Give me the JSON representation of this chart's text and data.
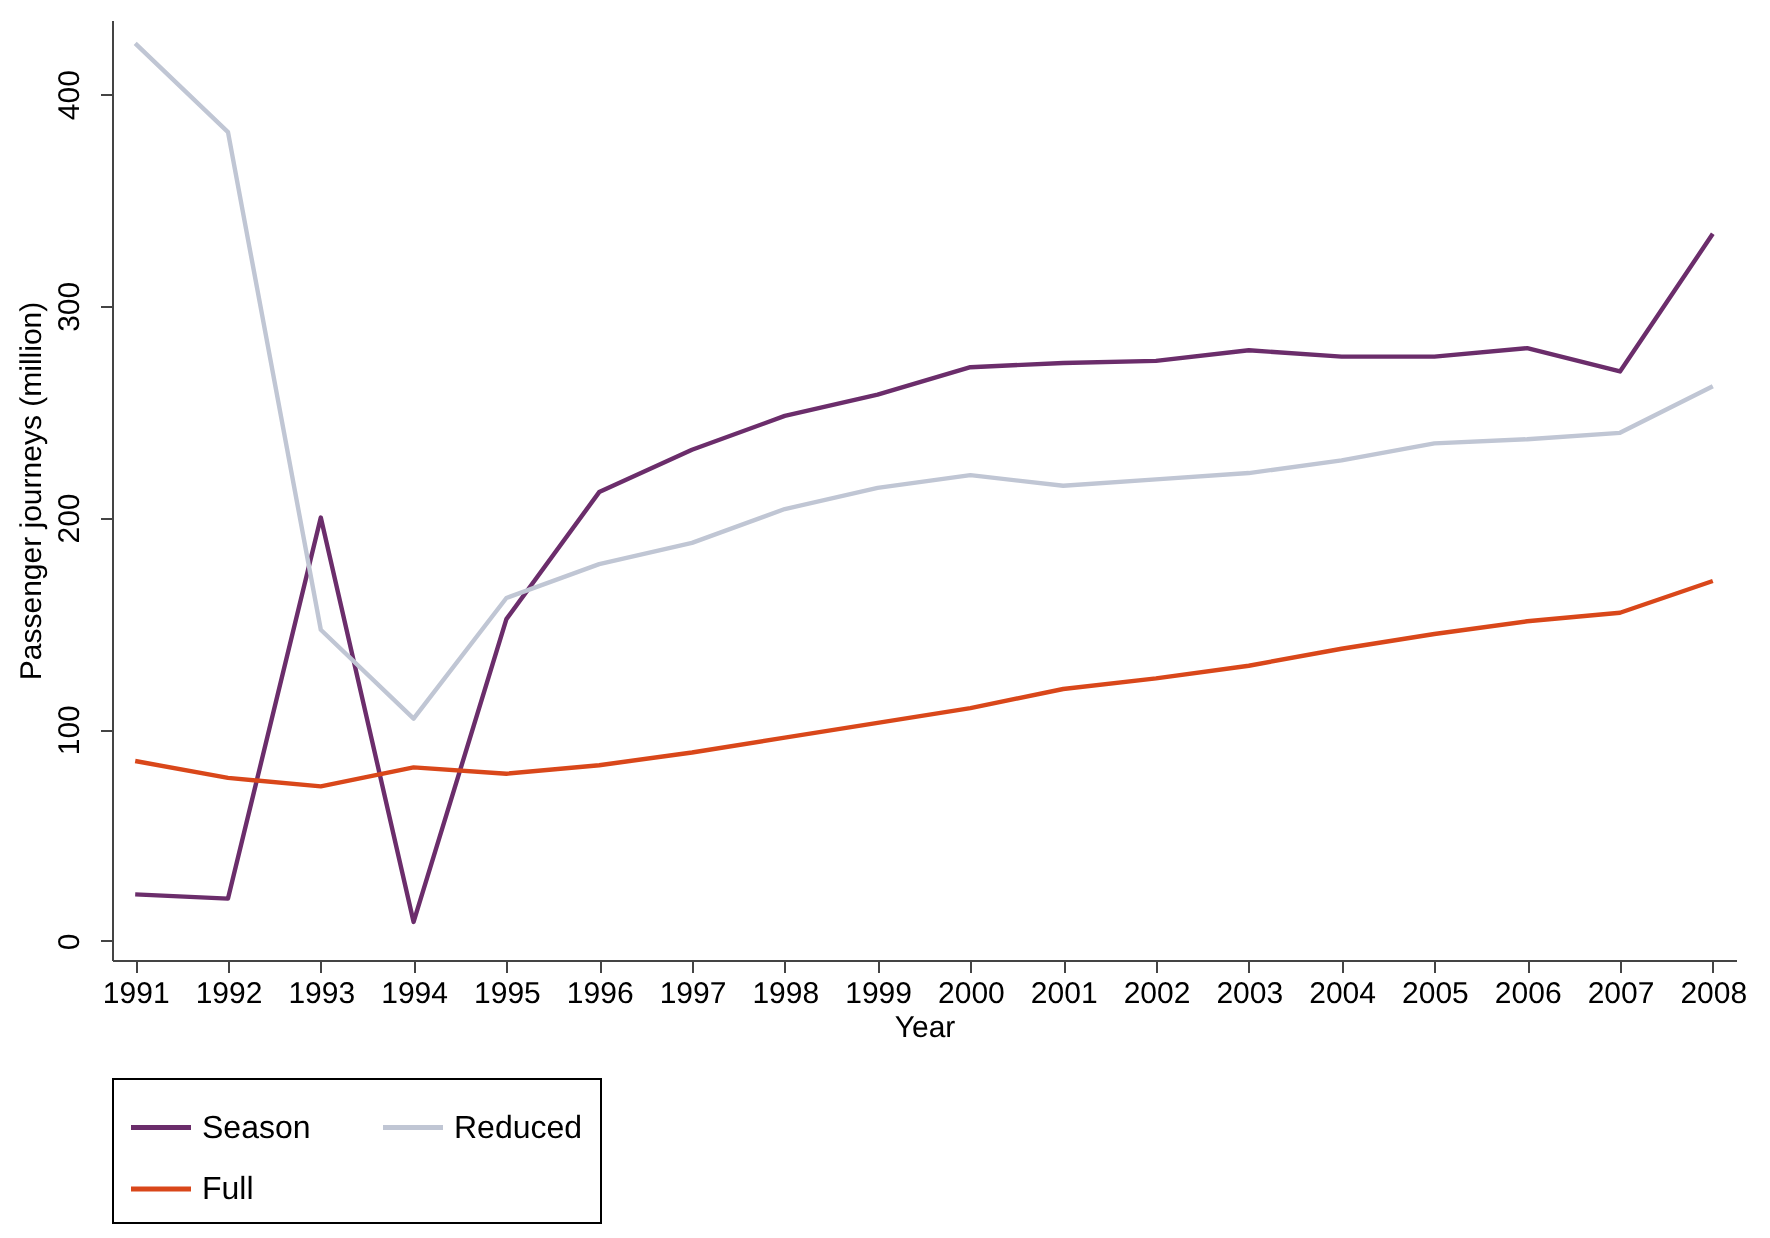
{
  "chart_data": {
    "type": "line",
    "xlabel": "Year",
    "ylabel": "Passenger journeys (million)",
    "x": [
      1991,
      1992,
      1993,
      1994,
      1995,
      1996,
      1997,
      1998,
      1999,
      2000,
      2001,
      2002,
      2003,
      2004,
      2005,
      2006,
      2007,
      2008
    ],
    "series": [
      {
        "name": "Season",
        "color": "#6b2d6b",
        "values": [
          22,
          20,
          200,
          9,
          152,
          212,
          232,
          248,
          258,
          271,
          273,
          274,
          279,
          276,
          276,
          280,
          269,
          334
        ]
      },
      {
        "name": "Reduced",
        "color": "#c0c6d4",
        "values": [
          424,
          382,
          147,
          105,
          162,
          178,
          188,
          204,
          214,
          220,
          215,
          218,
          221,
          227,
          235,
          237,
          240,
          262
        ]
      },
      {
        "name": "Full",
        "color": "#d9471a",
        "values": [
          85,
          77,
          73,
          82,
          79,
          83,
          89,
          96,
          103,
          110,
          119,
          124,
          130,
          138,
          145,
          151,
          155,
          170
        ]
      }
    ],
    "xlim": [
      1990.75,
      2008.25
    ],
    "xticks": [
      1991,
      1992,
      1993,
      1994,
      1995,
      1996,
      1997,
      1998,
      1999,
      2000,
      2001,
      2002,
      2003,
      2004,
      2005,
      2006,
      2007,
      2008
    ],
    "ylim": [
      -9,
      435
    ],
    "yticks": [
      0,
      100,
      200,
      300,
      400
    ],
    "grid": false,
    "legend": "bottom",
    "line_style": "solid",
    "marker": "none"
  }
}
